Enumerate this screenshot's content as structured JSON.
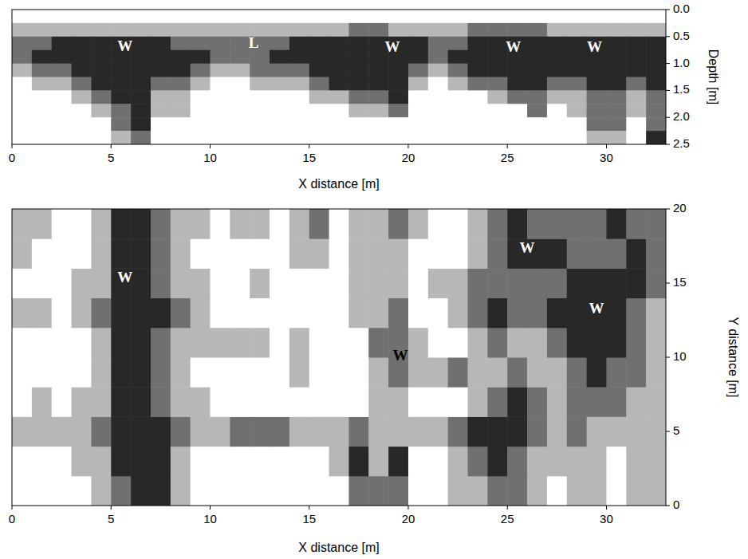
{
  "chart_data": [
    {
      "type": "heatmap",
      "x_label": "X distance [m]",
      "y_label": "Depth [m]",
      "xlim": [
        0,
        33
      ],
      "ylim": [
        2.5,
        0
      ],
      "xticks": [
        0,
        5,
        10,
        15,
        20,
        25,
        30
      ],
      "yticks": [
        {
          "value": 0,
          "label": "0.0"
        },
        0.5,
        {
          "value": 1,
          "label": "1.0"
        },
        1.5,
        {
          "value": 2,
          "label": "2.0"
        },
        2.5
      ],
      "zlim": [
        0,
        3
      ],
      "x_bins": [
        0,
        1,
        2,
        3,
        4,
        5,
        6,
        7,
        8,
        9,
        10,
        11,
        12,
        13,
        14,
        15,
        16,
        17,
        18,
        19,
        20,
        21,
        22,
        23,
        24,
        25,
        26,
        27,
        28,
        29,
        30,
        31,
        32,
        33
      ],
      "y_bins": [
        0,
        0.25,
        0.5,
        0.75,
        1,
        1.25,
        1.5,
        1.75,
        2,
        2.25,
        2.5
      ],
      "cells": [
        [
          0,
          0,
          0,
          0,
          0,
          0,
          0,
          0,
          0,
          0,
          0,
          0,
          0,
          0,
          0,
          0,
          0,
          0,
          0,
          0,
          0,
          0,
          0,
          0,
          0,
          0,
          0,
          0,
          0,
          0,
          0,
          0,
          0
        ],
        [
          1,
          1,
          1,
          1,
          1,
          1,
          1,
          1,
          1,
          1,
          1,
          1,
          1,
          1,
          1,
          1,
          1,
          2,
          2,
          1,
          1,
          1,
          1,
          2,
          2,
          2,
          2,
          1,
          1,
          1,
          1,
          1,
          1
        ],
        [
          2,
          2,
          3,
          3,
          3,
          3,
          3,
          3,
          2,
          2,
          2,
          2,
          2,
          2,
          3,
          3,
          3,
          3,
          3,
          3,
          3,
          2,
          2,
          3,
          3,
          3,
          3,
          3,
          3,
          3,
          3,
          3,
          3
        ],
        [
          2,
          3,
          3,
          3,
          3,
          3,
          3,
          3,
          3,
          3,
          2,
          2,
          2,
          3,
          3,
          3,
          3,
          3,
          3,
          3,
          3,
          2,
          3,
          3,
          3,
          3,
          3,
          3,
          3,
          3,
          3,
          3,
          3
        ],
        [
          1,
          2,
          2,
          3,
          3,
          3,
          3,
          3,
          3,
          2,
          1,
          1,
          2,
          2,
          2,
          3,
          3,
          3,
          3,
          3,
          2,
          1,
          2,
          3,
          3,
          3,
          3,
          3,
          3,
          3,
          3,
          3,
          3
        ],
        [
          0,
          1,
          1,
          2,
          3,
          3,
          3,
          2,
          2,
          1,
          0,
          0,
          1,
          1,
          1,
          2,
          3,
          3,
          3,
          3,
          1,
          0,
          1,
          2,
          2,
          3,
          3,
          2,
          2,
          3,
          3,
          2,
          3
        ],
        [
          0,
          0,
          0,
          1,
          2,
          3,
          3,
          1,
          1,
          0,
          0,
          0,
          0,
          0,
          0,
          1,
          1,
          2,
          2,
          3,
          0,
          0,
          0,
          0,
          1,
          2,
          2,
          1,
          1,
          2,
          2,
          1,
          2
        ],
        [
          0,
          0,
          0,
          0,
          1,
          2,
          3,
          1,
          1,
          0,
          0,
          0,
          0,
          0,
          0,
          0,
          0,
          1,
          1,
          2,
          0,
          0,
          0,
          0,
          0,
          0,
          2,
          0,
          1,
          2,
          2,
          1,
          2
        ],
        [
          0,
          0,
          0,
          0,
          0,
          2,
          3,
          0,
          0,
          0,
          0,
          0,
          0,
          0,
          0,
          0,
          0,
          0,
          0,
          0,
          0,
          0,
          0,
          0,
          0,
          0,
          0,
          0,
          0,
          2,
          2,
          0,
          2
        ],
        [
          0,
          0,
          0,
          0,
          0,
          1,
          2,
          0,
          0,
          0,
          0,
          0,
          0,
          0,
          0,
          0,
          0,
          0,
          0,
          0,
          0,
          0,
          0,
          0,
          0,
          0,
          0,
          0,
          0,
          1,
          1,
          0,
          3
        ]
      ],
      "annotations": [
        {
          "text": "W",
          "x": 5.7,
          "y": 0.7,
          "color": "#ffffff"
        },
        {
          "text": "L",
          "x": 12.2,
          "y": 0.65,
          "color": "#ffffff"
        },
        {
          "text": "W",
          "x": 19.2,
          "y": 0.72,
          "color": "#ffffff"
        },
        {
          "text": "W",
          "x": 25.3,
          "y": 0.72,
          "color": "#ffffff"
        },
        {
          "text": "W",
          "x": 29.4,
          "y": 0.72,
          "color": "#ffffff"
        }
      ]
    },
    {
      "type": "heatmap",
      "x_label": "X distance [m]",
      "y_label": "Y distance [m]",
      "xlim": [
        0,
        33
      ],
      "ylim": [
        0,
        20
      ],
      "xticks": [
        0,
        5,
        10,
        15,
        20,
        25,
        30
      ],
      "yticks": [
        0,
        5,
        10,
        15,
        20
      ],
      "zlim": [
        0,
        3
      ],
      "x_bins": [
        0,
        1,
        2,
        3,
        4,
        5,
        6,
        7,
        8,
        9,
        10,
        11,
        12,
        13,
        14,
        15,
        16,
        17,
        18,
        19,
        20,
        21,
        22,
        23,
        24,
        25,
        26,
        27,
        28,
        29,
        30,
        31,
        32,
        33
      ],
      "y_bins": [
        0,
        2,
        4,
        6,
        8,
        10,
        12,
        14,
        16,
        18,
        20
      ],
      "cells": [
        [
          0,
          0,
          0,
          0,
          1,
          2,
          3,
          3,
          1,
          0,
          0,
          0,
          0,
          0,
          0,
          0,
          0,
          2,
          2,
          2,
          0,
          0,
          1,
          1,
          2,
          2,
          1,
          0,
          1,
          1,
          0,
          1,
          1
        ],
        [
          0,
          0,
          0,
          1,
          1,
          3,
          3,
          3,
          1,
          0,
          0,
          0,
          0,
          0,
          0,
          0,
          1,
          3,
          1,
          3,
          0,
          0,
          1,
          2,
          3,
          2,
          1,
          1,
          1,
          1,
          0,
          1,
          1
        ],
        [
          1,
          1,
          1,
          1,
          2,
          3,
          3,
          3,
          2,
          1,
          1,
          2,
          2,
          2,
          1,
          1,
          1,
          2,
          1,
          1,
          1,
          1,
          2,
          3,
          3,
          3,
          2,
          1,
          2,
          1,
          1,
          1,
          1
        ],
        [
          0,
          1,
          0,
          1,
          1,
          3,
          3,
          2,
          1,
          1,
          0,
          0,
          0,
          0,
          0,
          0,
          0,
          0,
          1,
          1,
          0,
          0,
          0,
          1,
          2,
          3,
          2,
          1,
          2,
          2,
          2,
          1,
          1
        ],
        [
          0,
          0,
          0,
          0,
          1,
          3,
          3,
          2,
          1,
          0,
          0,
          0,
          0,
          0,
          1,
          0,
          0,
          0,
          1,
          2,
          1,
          1,
          2,
          1,
          1,
          2,
          1,
          1,
          2,
          3,
          2,
          2,
          1
        ],
        [
          0,
          0,
          0,
          0,
          1,
          3,
          3,
          2,
          1,
          1,
          1,
          1,
          1,
          0,
          1,
          0,
          0,
          0,
          2,
          2,
          1,
          0,
          0,
          1,
          2,
          1,
          1,
          2,
          3,
          3,
          3,
          2,
          1
        ],
        [
          1,
          1,
          0,
          1,
          2,
          3,
          3,
          3,
          2,
          1,
          0,
          0,
          0,
          0,
          0,
          0,
          0,
          1,
          1,
          2,
          0,
          0,
          1,
          2,
          3,
          2,
          2,
          3,
          3,
          3,
          3,
          2,
          1
        ],
        [
          0,
          0,
          0,
          1,
          1,
          3,
          3,
          2,
          1,
          1,
          0,
          0,
          1,
          0,
          0,
          0,
          0,
          1,
          1,
          1,
          0,
          1,
          1,
          2,
          2,
          2,
          2,
          2,
          3,
          3,
          3,
          3,
          2
        ],
        [
          1,
          0,
          0,
          0,
          1,
          3,
          3,
          2,
          1,
          0,
          0,
          0,
          0,
          0,
          1,
          1,
          0,
          1,
          1,
          1,
          0,
          0,
          0,
          1,
          2,
          3,
          3,
          3,
          2,
          2,
          2,
          3,
          2
        ],
        [
          1,
          1,
          0,
          0,
          1,
          3,
          3,
          2,
          1,
          1,
          0,
          1,
          1,
          0,
          1,
          2,
          0,
          1,
          1,
          2,
          1,
          0,
          0,
          1,
          2,
          3,
          2,
          2,
          2,
          2,
          3,
          2,
          2
        ]
      ],
      "annotations": [
        {
          "text": "W",
          "x": 5.7,
          "y": 15.3,
          "color": "#ffffff"
        },
        {
          "text": "W",
          "x": 19.6,
          "y": 10.0,
          "color": "#000000"
        },
        {
          "text": "W",
          "x": 26.0,
          "y": 17.3,
          "color": "#ffffff"
        },
        {
          "text": "W",
          "x": 29.5,
          "y": 13.2,
          "color": "#ffffff"
        }
      ]
    }
  ]
}
